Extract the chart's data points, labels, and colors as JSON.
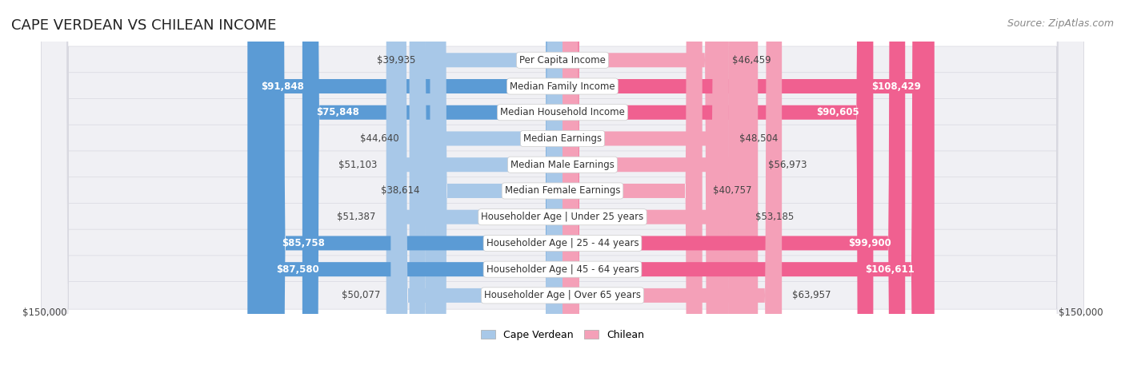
{
  "title": "CAPE VERDEAN VS CHILEAN INCOME",
  "source": "Source: ZipAtlas.com",
  "categories": [
    "Per Capita Income",
    "Median Family Income",
    "Median Household Income",
    "Median Earnings",
    "Median Male Earnings",
    "Median Female Earnings",
    "Householder Age | Under 25 years",
    "Householder Age | 25 - 44 years",
    "Householder Age | 45 - 64 years",
    "Householder Age | Over 65 years"
  ],
  "cape_verdean": [
    39935,
    91848,
    75848,
    44640,
    51103,
    38614,
    51387,
    85758,
    87580,
    50077
  ],
  "chilean": [
    46459,
    108429,
    90605,
    48504,
    56973,
    40757,
    53185,
    99900,
    106611,
    63957
  ],
  "max_value": 150000,
  "cape_verdean_light": "#a8c8e8",
  "cape_verdean_dark": "#5b9bd5",
  "chilean_light": "#f4a0b8",
  "chilean_dark": "#f06090",
  "row_bg": "#f0f0f4",
  "row_border": "#d8d8e0",
  "bar_height": 0.55,
  "label_fontsize": 8.5,
  "value_fontsize": 8.5,
  "title_fontsize": 13,
  "source_fontsize": 9,
  "legend_fontsize": 9,
  "axis_label_fontsize": 8.5,
  "background_color": "#ffffff"
}
